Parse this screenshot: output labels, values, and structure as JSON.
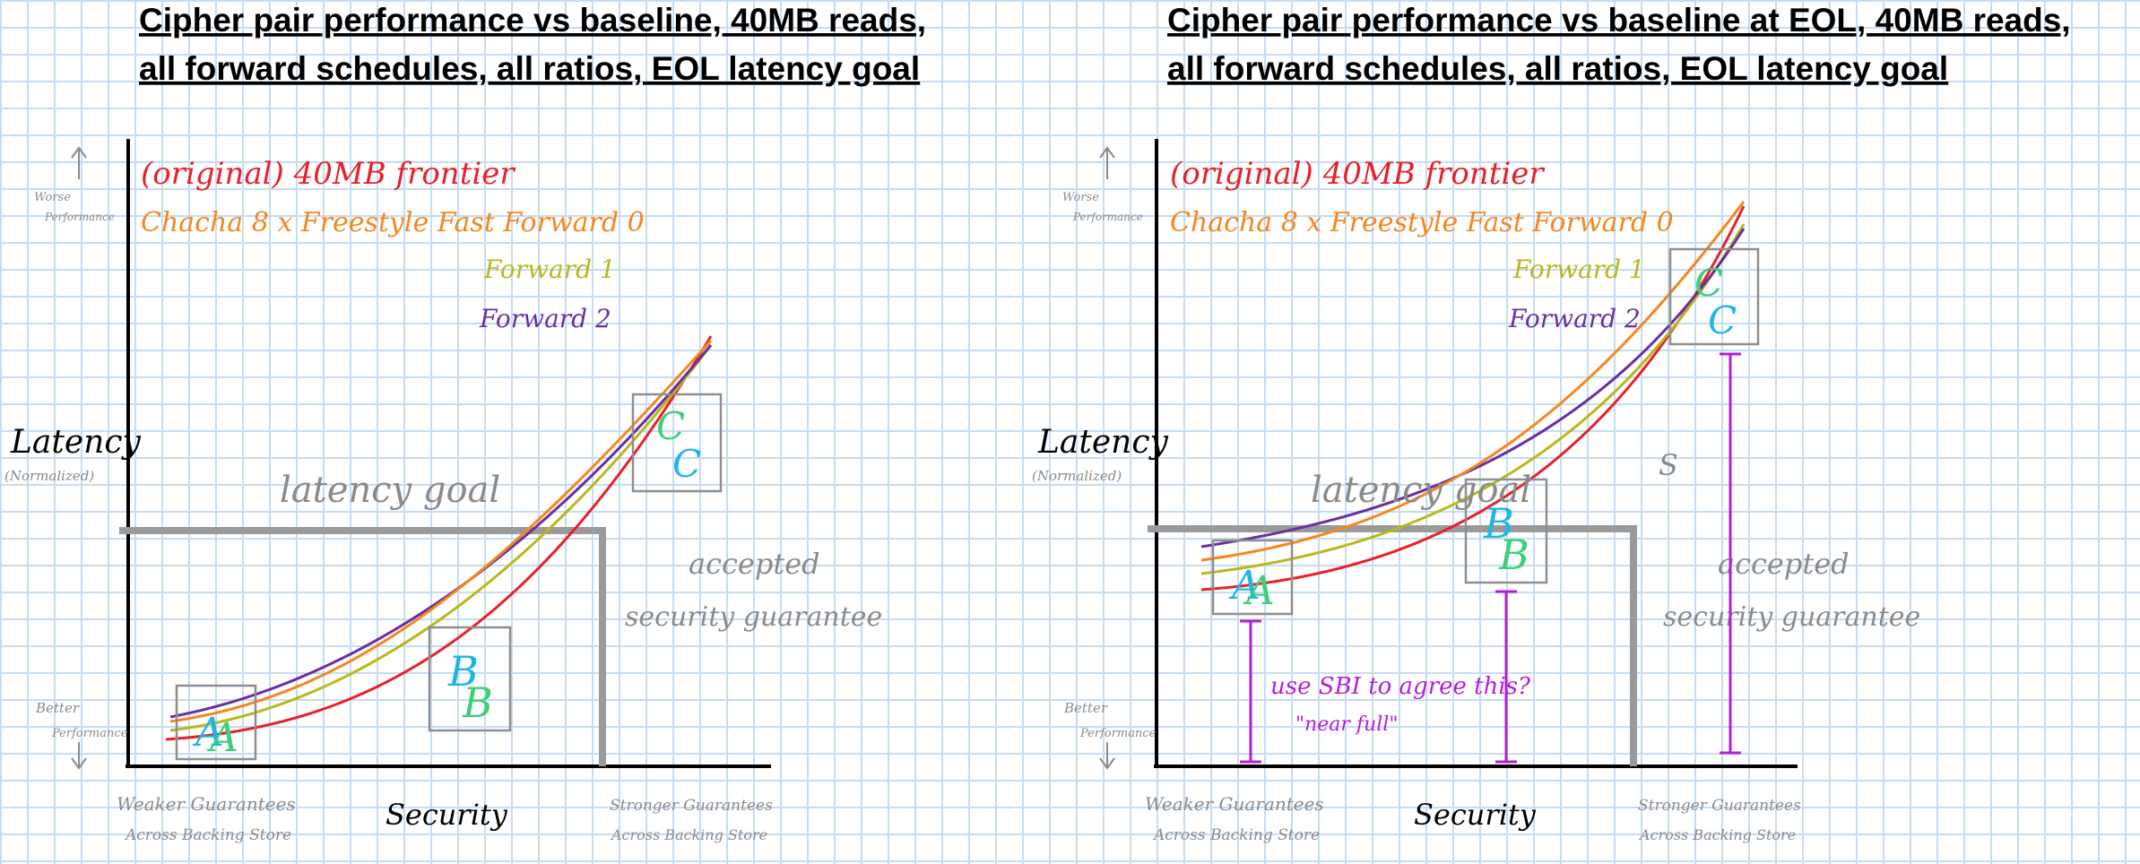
{
  "panels": [
    {
      "title_line1": "Cipher pair performance vs baseline, 40MB reads,",
      "title_line2": "all forward schedules, all ratios, EOL latency goal",
      "legend": {
        "original": "(original) 40MB frontier",
        "forward0": "Chacha 8 x Freestyle Fast Forward 0",
        "forward1": "Forward 1",
        "forward2": "Forward 2"
      },
      "y_axis": {
        "label": "Latency",
        "sub": "(Normalized)",
        "top_line1": "Worse",
        "top_line2": "Performance",
        "bottom_line1": "Better",
        "bottom_line2": "Performance"
      },
      "x_axis": {
        "label": "Security",
        "left_line1": "Weaker Guarantees",
        "left_line2": "Across Backing Store",
        "right_line1": "Stronger Guarantees",
        "right_line2": "Across Backing Store"
      },
      "goal_label": "latency goal",
      "accepted_line1": "accepted",
      "accepted_line2": "security guarantee",
      "points": [
        {
          "a": "A",
          "b": "A"
        },
        {
          "a": "B",
          "b": "B"
        },
        {
          "a": "C",
          "b": "C"
        }
      ]
    },
    {
      "title_line1": "Cipher pair performance vs baseline at EOL, 40MB reads,",
      "title_line2": "all forward schedules, all ratios, EOL latency goal",
      "legend": {
        "original": "(original) 40MB frontier",
        "forward0": "Chacha 8 x Freestyle Fast Forward 0",
        "forward1": "Forward 1",
        "forward2": "Forward 2"
      },
      "y_axis": {
        "label": "Latency",
        "sub": "(Normalized)",
        "top_line1": "Worse",
        "top_line2": "Performance",
        "bottom_line1": "Better",
        "bottom_line2": "Performance"
      },
      "x_axis": {
        "label": "Security",
        "left_line1": "Weaker Guarantees",
        "left_line2": "Across Backing Store",
        "right_line1": "Stronger Guarantees",
        "right_line2": "Across Backing Store"
      },
      "goal_label": "latency goal",
      "accepted_line1": "accepted",
      "accepted_line2": "security guarantee",
      "points": [
        {
          "a": "A",
          "b": "A"
        },
        {
          "a": "B",
          "b": "B"
        },
        {
          "a": "C",
          "b": "C"
        }
      ],
      "note_line1": "use SBI to agree this?",
      "note_line2": "\"near full\"",
      "s_mark": "S"
    }
  ],
  "colors": {
    "original": "#e8202a",
    "forward0": "#f5871f",
    "forward1": "#b9b81a",
    "forward2": "#6a2fa0",
    "axis": "#000000",
    "goal": "#9a9a9a",
    "box": "#8f8f8f",
    "gray_text": "#8a8a8a",
    "cyan": "#1fb5e8",
    "green": "#3ecf7a",
    "annotation": "#b21fd8"
  }
}
